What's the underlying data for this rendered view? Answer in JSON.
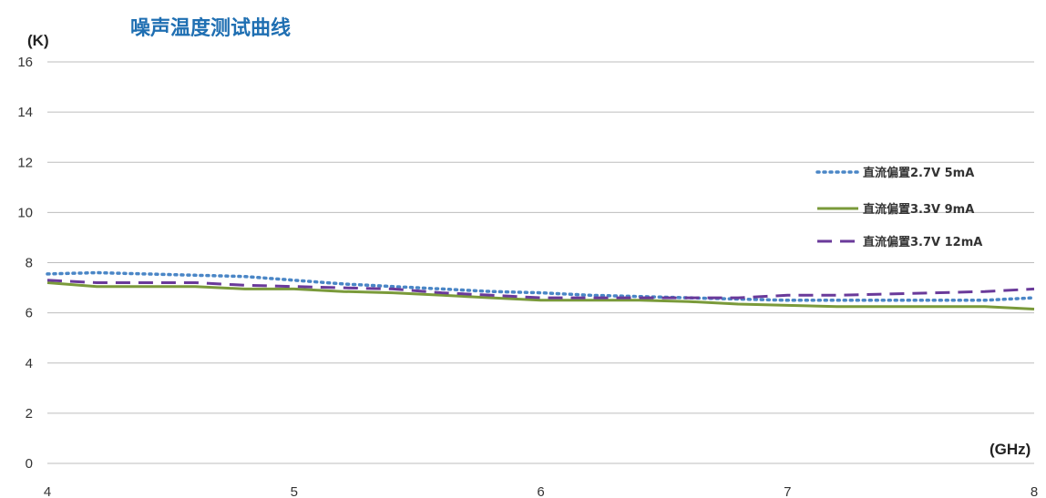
{
  "chart_data": {
    "type": "line",
    "title": "噪声温度测试曲线",
    "ylabel": "(K)",
    "xlabel": "(GHz)",
    "ylim": [
      0,
      16
    ],
    "xlim": [
      4,
      8
    ],
    "yticks": [
      "0",
      "2",
      "4",
      "6",
      "8",
      "10",
      "12",
      "14",
      "16"
    ],
    "xticks": [
      "4",
      "5",
      "6",
      "7",
      "8"
    ],
    "grid": "horizontal",
    "legend_position": "right",
    "series": [
      {
        "name": "直流偏置2.7V 5mA",
        "style": "dotted",
        "color": "#4a86c6",
        "x": [
          4.0,
          4.2,
          4.4,
          4.6,
          4.8,
          5.0,
          5.2,
          5.4,
          5.6,
          5.8,
          6.0,
          6.2,
          6.4,
          6.6,
          6.8,
          7.0,
          7.2,
          7.4,
          7.6,
          7.8,
          8.0
        ],
        "y": [
          7.55,
          7.6,
          7.55,
          7.5,
          7.45,
          7.3,
          7.15,
          7.05,
          6.95,
          6.85,
          6.8,
          6.7,
          6.65,
          6.6,
          6.55,
          6.5,
          6.5,
          6.5,
          6.5,
          6.5,
          6.6
        ]
      },
      {
        "name": "直流偏置3.3V 9mA",
        "style": "solid",
        "color": "#7a9a3a",
        "x": [
          4.0,
          4.2,
          4.4,
          4.6,
          4.8,
          5.0,
          5.2,
          5.4,
          5.6,
          5.8,
          6.0,
          6.2,
          6.4,
          6.6,
          6.8,
          7.0,
          7.2,
          7.4,
          7.6,
          7.8,
          8.0
        ],
        "y": [
          7.2,
          7.05,
          7.05,
          7.05,
          6.95,
          6.95,
          6.85,
          6.8,
          6.7,
          6.6,
          6.5,
          6.5,
          6.5,
          6.45,
          6.35,
          6.3,
          6.25,
          6.25,
          6.25,
          6.25,
          6.15
        ]
      },
      {
        "name": "直流偏置3.7V 12mA",
        "style": "dashed",
        "color": "#6a3a9a",
        "x": [
          4.0,
          4.2,
          4.4,
          4.6,
          4.8,
          5.0,
          5.2,
          5.4,
          5.6,
          5.8,
          6.0,
          6.2,
          6.4,
          6.6,
          6.8,
          7.0,
          7.2,
          7.4,
          7.6,
          7.8,
          8.0
        ],
        "y": [
          7.3,
          7.2,
          7.2,
          7.2,
          7.1,
          7.05,
          7.0,
          6.95,
          6.8,
          6.7,
          6.6,
          6.6,
          6.6,
          6.6,
          6.6,
          6.7,
          6.7,
          6.75,
          6.8,
          6.85,
          6.95
        ]
      }
    ]
  }
}
